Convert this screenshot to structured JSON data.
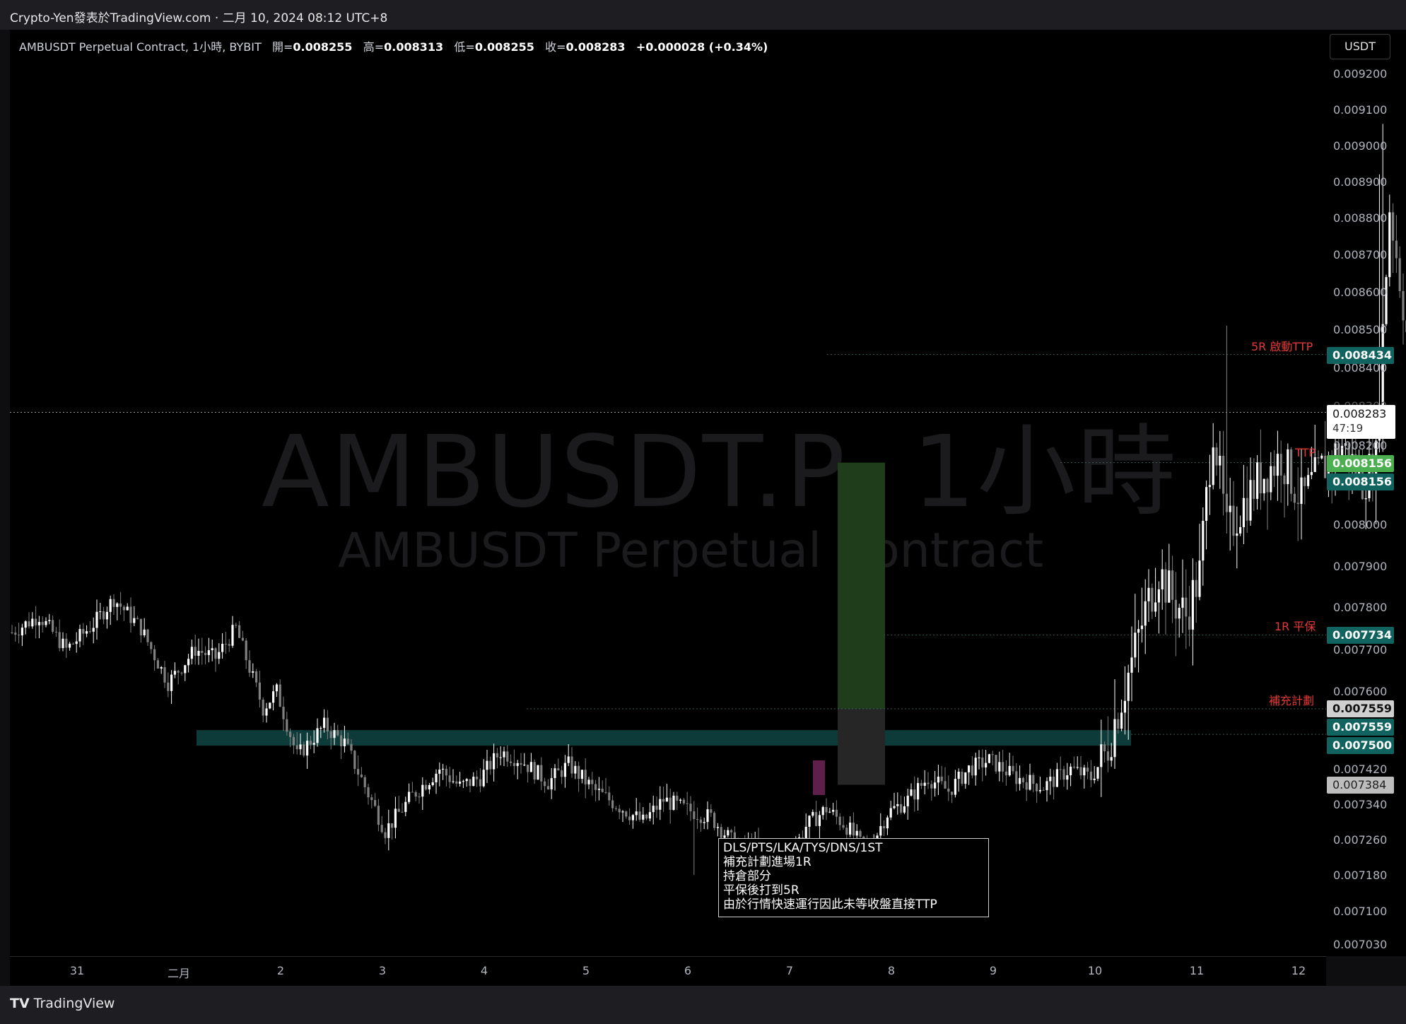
{
  "header": {
    "publisher": "Crypto-Yen發表於TradingView.com",
    "date": "二月 10, 2024 08:12 UTC+8"
  },
  "legend": {
    "symbol": "AMBUSDT Perpetual Contract, 1小時, BYBIT",
    "open_label": "開=",
    "open": "0.008255",
    "high_label": "高=",
    "high": "0.008313",
    "low_label": "低=",
    "low": "0.008255",
    "close_label": "收=",
    "close": "0.008283",
    "change": "+0.000028 (+0.34%)"
  },
  "currency_button": "USDT",
  "watermark": {
    "main": "AMBUSDT.P, 1小時",
    "sub": "AMBUSDT Perpetual Contract"
  },
  "price_axis": {
    "ticks": [
      "0.009200",
      "0.009100",
      "0.009000",
      "0.008900",
      "0.008800",
      "0.008700",
      "0.008600",
      "0.008500",
      "0.008400",
      "0.008300",
      "0.008200",
      "0.008000",
      "0.007900",
      "0.007800",
      "0.007700",
      "0.007600",
      "0.007420",
      "0.007340",
      "0.007260",
      "0.007180",
      "0.007100",
      "0.007030"
    ]
  },
  "time_axis": {
    "labels": [
      "31",
      "二月",
      "2",
      "3",
      "4",
      "5",
      "6",
      "7",
      "8",
      "9",
      "10",
      "11",
      "12"
    ]
  },
  "price_tags": {
    "r5": "0.008434",
    "current_price": "0.008283",
    "current_timer": "47:19",
    "ttp_green": "0.008156",
    "ttp_teal": "0.008156",
    "r1": "0.007734",
    "entry_gray": "0.007559",
    "entry_teal": "0.007559",
    "zone_top": "0.007500",
    "stop_gray": "0.007384"
  },
  "annotations": {
    "r5_label": "5R 啟動TTP",
    "ttp_label": "TTP",
    "r1_label": "1R 平保",
    "plan_label": "補充計劃"
  },
  "note": {
    "lines": [
      "DLS/PTS/LKA/TYS/DNS/1ST",
      "補充計劃進場1R",
      "持倉部分",
      "平保後打到5R",
      "由於行情快速運行因此未等收盤直接TTP"
    ]
  },
  "footer": {
    "brand": "TradingView"
  },
  "chart_data": {
    "type": "candlestick",
    "symbol": "AMBUSDT.P",
    "interval": "1h",
    "ylim": [
      0.00703,
      0.0092
    ],
    "colors": {
      "up": "#ffffff",
      "down": "#808080",
      "zone": "#0d3b3a",
      "profit": "#1f3d1a",
      "risk": "#262626",
      "label": "#e53935"
    },
    "levels": [
      {
        "label": "5R 啟動TTP",
        "price": 0.008434
      },
      {
        "label": "TTP",
        "price": 0.008156
      },
      {
        "label": "1R 平保",
        "price": 0.007734
      },
      {
        "label": "補充計劃",
        "price": 0.007559
      },
      {
        "price": 0.0075
      },
      {
        "price": 0.007384
      }
    ],
    "path": [
      [
        0,
        0.00774
      ],
      [
        8,
        0.00778
      ],
      [
        16,
        0.0077
      ],
      [
        24,
        0.00776
      ],
      [
        30,
        0.00782
      ],
      [
        38,
        0.00775
      ],
      [
        46,
        0.00762
      ],
      [
        54,
        0.0077
      ],
      [
        60,
        0.00768
      ],
      [
        66,
        0.00775
      ],
      [
        74,
        0.00756
      ],
      [
        78,
        0.0076
      ],
      [
        84,
        0.00745
      ],
      [
        92,
        0.00752
      ],
      [
        98,
        0.00748
      ],
      [
        104,
        0.00738
      ],
      [
        110,
        0.00728
      ],
      [
        118,
        0.00736
      ],
      [
        126,
        0.00742
      ],
      [
        132,
        0.00738
      ],
      [
        138,
        0.0074
      ],
      [
        144,
        0.00746
      ],
      [
        150,
        0.00744
      ],
      [
        158,
        0.00739
      ],
      [
        164,
        0.00743
      ],
      [
        172,
        0.00737
      ],
      [
        180,
        0.00733
      ],
      [
        186,
        0.0073
      ],
      [
        192,
        0.00735
      ],
      [
        198,
        0.00733
      ],
      [
        206,
        0.00731
      ],
      [
        214,
        0.00724
      ],
      [
        220,
        0.00724
      ],
      [
        228,
        0.0072
      ],
      [
        234,
        0.00729
      ],
      [
        240,
        0.00733
      ],
      [
        246,
        0.00729
      ],
      [
        252,
        0.00723
      ],
      [
        258,
        0.00732
      ],
      [
        264,
        0.00735
      ],
      [
        270,
        0.0074
      ],
      [
        276,
        0.00737
      ],
      [
        282,
        0.00742
      ],
      [
        288,
        0.00744
      ],
      [
        296,
        0.0074
      ],
      [
        304,
        0.00738
      ],
      [
        312,
        0.00742
      ],
      [
        318,
        0.0074
      ],
      [
        322,
        0.00745
      ],
      [
        326,
        0.00756
      ],
      [
        330,
        0.00767
      ],
      [
        334,
        0.00779
      ],
      [
        338,
        0.00789
      ],
      [
        342,
        0.00782
      ],
      [
        346,
        0.00778
      ],
      [
        350,
        0.00788
      ],
      [
        354,
        0.00825
      ],
      [
        358,
        0.00798
      ],
      [
        362,
        0.00804
      ],
      [
        368,
        0.00812
      ],
      [
        374,
        0.00817
      ],
      [
        380,
        0.00806
      ],
      [
        386,
        0.00814
      ],
      [
        392,
        0.0082
      ],
      [
        398,
        0.00811
      ],
      [
        402,
        0.00816
      ],
      [
        406,
        0.00883
      ],
      [
        410,
        0.00857
      ],
      [
        414,
        0.00826
      ],
      [
        420,
        0.00821
      ],
      [
        426,
        0.00816
      ],
      [
        432,
        0.00815
      ],
      [
        438,
        0.0082
      ],
      [
        444,
        0.0083
      ],
      [
        450,
        0.00833
      ],
      [
        456,
        0.00824
      ],
      [
        462,
        0.0082
      ],
      [
        468,
        0.00822
      ],
      [
        474,
        0.00819
      ],
      [
        480,
        0.00814
      ],
      [
        486,
        0.00814
      ],
      [
        492,
        0.00815
      ],
      [
        498,
        0.00823
      ],
      [
        505,
        0.00828
      ]
    ]
  }
}
